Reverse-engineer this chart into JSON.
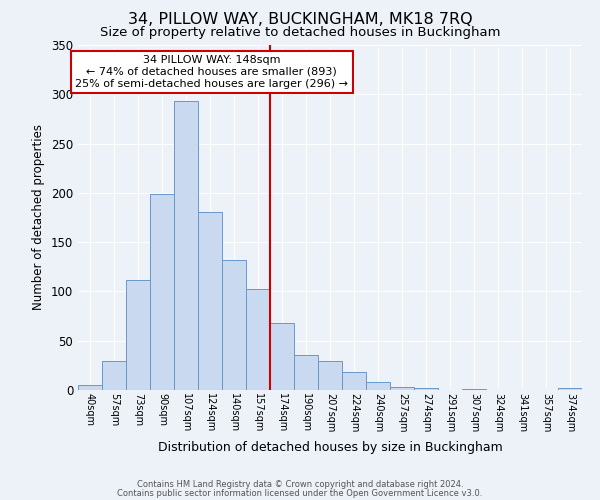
{
  "title": "34, PILLOW WAY, BUCKINGHAM, MK18 7RQ",
  "subtitle": "Size of property relative to detached houses in Buckingham",
  "xlabel": "Distribution of detached houses by size in Buckingham",
  "ylabel": "Number of detached properties",
  "bar_labels": [
    "40sqm",
    "57sqm",
    "73sqm",
    "90sqm",
    "107sqm",
    "124sqm",
    "140sqm",
    "157sqm",
    "174sqm",
    "190sqm",
    "207sqm",
    "224sqm",
    "240sqm",
    "257sqm",
    "274sqm",
    "291sqm",
    "307sqm",
    "324sqm",
    "341sqm",
    "357sqm",
    "374sqm"
  ],
  "bar_values": [
    5,
    29,
    112,
    199,
    293,
    181,
    132,
    102,
    68,
    36,
    29,
    18,
    8,
    3,
    2,
    0,
    1,
    0,
    0,
    0,
    2
  ],
  "bar_color": "#c9d9f0",
  "bar_edge_color": "#6699cc",
  "bar_width": 1.0,
  "vline_x": 7.5,
  "vline_color": "#cc0000",
  "annotation_title": "34 PILLOW WAY: 148sqm",
  "annotation_line1": "← 74% of detached houses are smaller (893)",
  "annotation_line2": "25% of semi-detached houses are larger (296) →",
  "annotation_box_color": "#ffffff",
  "annotation_box_edge": "#cc0000",
  "ylim": [
    0,
    350
  ],
  "yticks": [
    0,
    50,
    100,
    150,
    200,
    250,
    300,
    350
  ],
  "background_color": "#edf1f8",
  "plot_bg_color": "#edf1f8",
  "grid_color": "#ffffff",
  "title_fontsize": 11.5,
  "subtitle_fontsize": 9.5,
  "footer1": "Contains HM Land Registry data © Crown copyright and database right 2024.",
  "footer2": "Contains public sector information licensed under the Open Government Licence v3.0."
}
